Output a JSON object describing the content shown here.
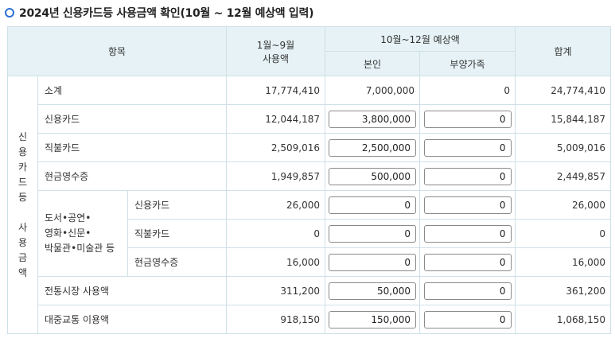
{
  "title": "2024년 신용카드등 사용금액 확인(10월 ~ 12월 예상액 입력)",
  "headers": {
    "item": "항목",
    "jan_sep_line1": "1월~9월",
    "jan_sep_line2": "사용액",
    "oct_dec": "10월~12월 예상액",
    "self": "본인",
    "dependents": "부양가족",
    "total": "합계"
  },
  "side_label": [
    "신",
    "용",
    "카",
    "드",
    "등",
    "",
    "사",
    "용",
    "금",
    "액"
  ],
  "culture_label": [
    "도서•공연•",
    "영화•신문•",
    "박물관•미술관 등"
  ],
  "rows": {
    "subtotal": {
      "label": "소계",
      "jan_sep": "17,774,410",
      "self": "7,000,000",
      "dep": "0",
      "total": "24,774,410"
    },
    "credit": {
      "label": "신용카드",
      "jan_sep": "12,044,187",
      "self": "3,800,000",
      "dep": "0",
      "total": "15,844,187"
    },
    "debit": {
      "label": "직불카드",
      "jan_sep": "2,509,016",
      "self": "2,500,000",
      "dep": "0",
      "total": "5,009,016"
    },
    "cash": {
      "label": "현금영수증",
      "jan_sep": "1,949,857",
      "self": "500,000",
      "dep": "0",
      "total": "2,449,857"
    },
    "cul_credit": {
      "label": "신용카드",
      "jan_sep": "26,000",
      "self": "0",
      "dep": "0",
      "total": "26,000"
    },
    "cul_debit": {
      "label": "직불카드",
      "jan_sep": "0",
      "self": "0",
      "dep": "0",
      "total": "0"
    },
    "cul_cash": {
      "label": "현금영수증",
      "jan_sep": "16,000",
      "self": "0",
      "dep": "0",
      "total": "16,000"
    },
    "market": {
      "label": "전통시장 사용액",
      "jan_sep": "311,200",
      "self": "50,000",
      "dep": "0",
      "total": "361,200"
    },
    "transit": {
      "label": "대중교통 이용액",
      "jan_sep": "918,150",
      "self": "150,000",
      "dep": "0",
      "total": "1,068,150"
    }
  }
}
